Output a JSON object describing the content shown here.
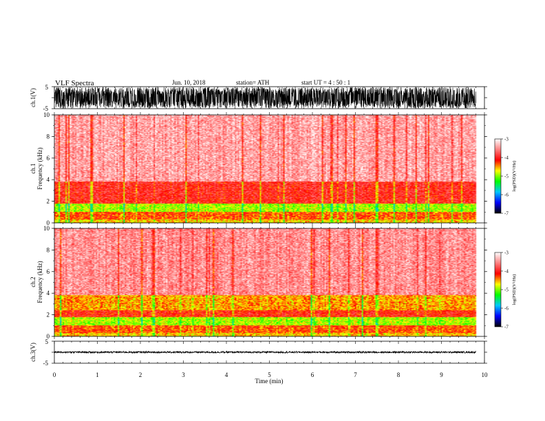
{
  "header": {
    "title": "VLF  Spectra",
    "date": "Jun. 10, 2018",
    "station": "station= ATH",
    "start": "start  UT  =   4  : 50 : 1"
  },
  "chart_data": [
    {
      "type": "line",
      "panel": "ch1-waveform",
      "ylabel": "ch.1(V)",
      "ylim": [
        -5,
        5
      ],
      "yticks": [
        "5",
        "-5"
      ],
      "xlim": [
        0,
        10
      ],
      "x_data_end": 9.8,
      "amplitude_range": [
        -4.8,
        4.8
      ]
    },
    {
      "type": "heatmap",
      "panel": "ch1-spectrogram",
      "ylabel_channel": "ch.1",
      "ylabel": "Frequency  (kHz)",
      "ylim": [
        0,
        10
      ],
      "yticks": [
        "0",
        "2",
        "4",
        "6",
        "8",
        "10"
      ],
      "xlim": [
        0,
        10
      ],
      "x_data_end": 9.8,
      "colorbar": {
        "label": "log(PSD)(V²/Hz)",
        "range": [
          -7,
          -3
        ],
        "ticks": [
          "-3",
          "-4",
          "-5",
          "-6",
          "-7"
        ],
        "colors": [
          "#000000",
          "#0000ff",
          "#00c8ff",
          "#00ff00",
          "#ffff00",
          "#ff0000",
          "#ff8080",
          "#ffffff"
        ]
      },
      "bands_khz": [
        {
          "from": 0,
          "to": 0.3,
          "level": -4.6
        },
        {
          "from": 0.3,
          "to": 1.0,
          "level": -4.3
        },
        {
          "from": 1.0,
          "to": 1.8,
          "level": -4.9
        },
        {
          "from": 1.8,
          "to": 3.8,
          "level": -4.0
        },
        {
          "from": 3.8,
          "to": 10,
          "level": -3.4
        }
      ]
    },
    {
      "type": "heatmap",
      "panel": "ch2-spectrogram",
      "ylabel_channel": "ch.2",
      "ylabel": "Frequency  (kHz)",
      "ylim": [
        0,
        10
      ],
      "yticks": [
        "0",
        "2",
        "4",
        "6",
        "8",
        "10"
      ],
      "xlim": [
        0,
        10
      ],
      "x_data_end": 9.8,
      "colorbar": {
        "label": "log(PSD)(V²/Hz)",
        "range": [
          -7,
          -3
        ],
        "ticks": [
          "-3",
          "-4",
          "-5",
          "-6",
          "-7"
        ],
        "colors": [
          "#000000",
          "#0000ff",
          "#00c8ff",
          "#00ff00",
          "#ffff00",
          "#ff0000",
          "#ff8080",
          "#ffffff"
        ]
      },
      "bands_khz": [
        {
          "from": 0,
          "to": 0.3,
          "level": -4.6
        },
        {
          "from": 0.3,
          "to": 1.0,
          "level": -4.3
        },
        {
          "from": 1.0,
          "to": 1.8,
          "level": -4.9
        },
        {
          "from": 1.8,
          "to": 2.4,
          "level": -4.1
        },
        {
          "from": 2.4,
          "to": 3.8,
          "level": -4.5
        },
        {
          "from": 3.8,
          "to": 10,
          "level": -3.5
        }
      ]
    },
    {
      "type": "line",
      "panel": "ch3-waveform",
      "ylabel": "ch.3(V)",
      "ylim": [
        -5,
        5
      ],
      "yticks": [
        "5",
        "-5"
      ],
      "xlim": [
        0,
        10
      ],
      "x_data_end": 9.8,
      "amplitude_range": [
        -0.4,
        0.4
      ],
      "xlabel": "Time  (min)",
      "xticks": [
        "0",
        "1",
        "2",
        "3",
        "4",
        "5",
        "6",
        "7",
        "8",
        "9",
        "10"
      ]
    }
  ]
}
